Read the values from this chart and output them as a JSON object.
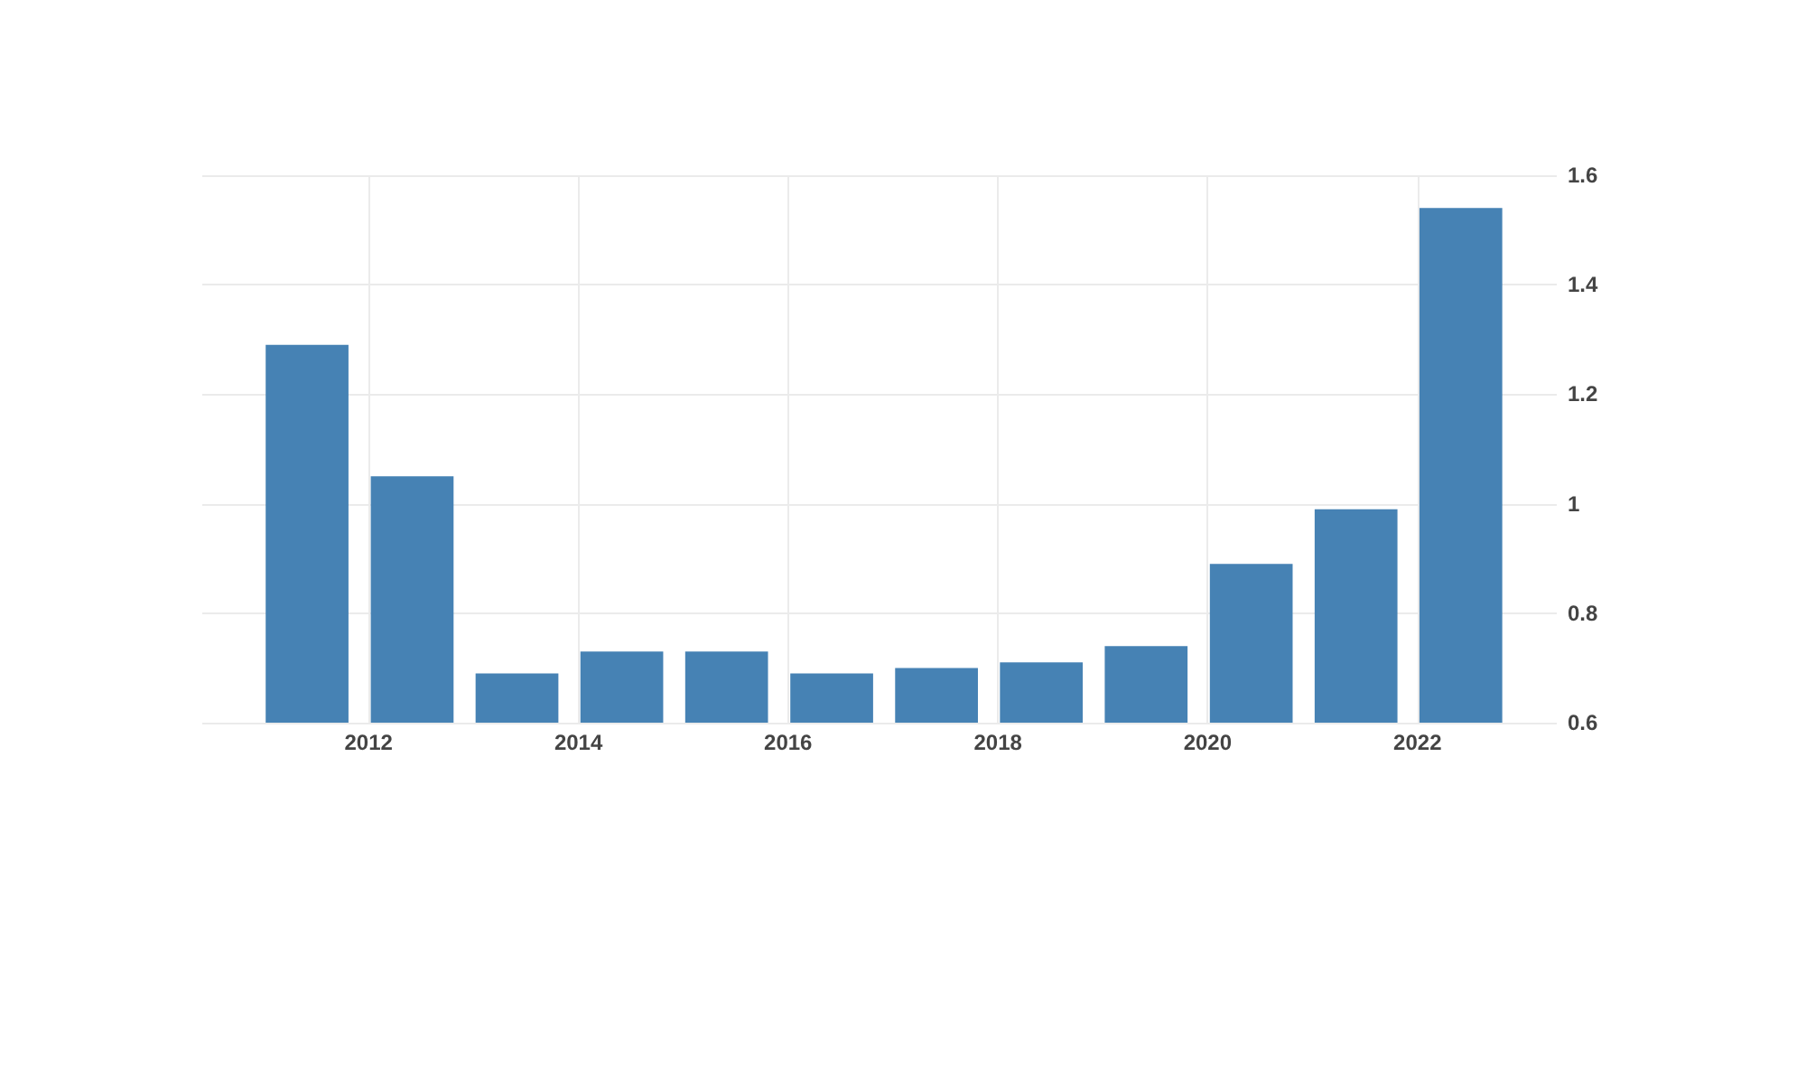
{
  "chart_data": {
    "type": "bar",
    "x": [
      "2011-06",
      "2012-06",
      "2013-06",
      "2014-06",
      "2015-06",
      "2016-06",
      "2017-06",
      "2018-06",
      "2019-06",
      "2020-06",
      "2021-06",
      "2022-06"
    ],
    "values": [
      1.29,
      1.05,
      0.69,
      0.73,
      0.73,
      0.69,
      0.7,
      0.71,
      0.74,
      0.89,
      0.99,
      1.54
    ],
    "color": "#4682b4",
    "xlim": [
      "2010-06",
      "2023-05"
    ],
    "xticks": [
      "2012",
      "2014",
      "2016",
      "2018",
      "2020",
      "2022"
    ],
    "ylim": [
      0.6,
      1.6
    ],
    "yticks": [
      0.6,
      0.8,
      1,
      1.2,
      1.4,
      1.6
    ],
    "grid": true
  }
}
